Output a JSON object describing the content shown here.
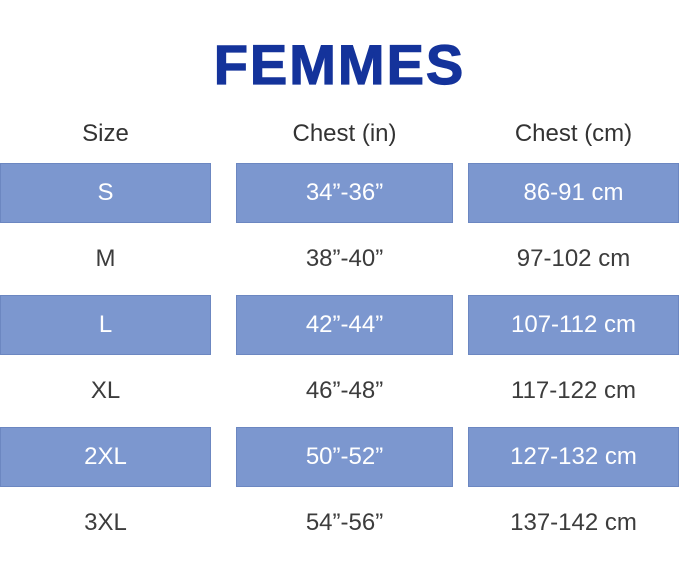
{
  "title": "FEMMES",
  "table": {
    "columns": [
      "Size",
      "Chest (in)",
      "Chest (cm)"
    ],
    "rows": [
      {
        "size": "S",
        "chest_in": "34”-36”",
        "chest_cm": "86-91 cm",
        "highlighted": true
      },
      {
        "size": "M",
        "chest_in": "38”-40”",
        "chest_cm": "97-102 cm",
        "highlighted": false
      },
      {
        "size": "L",
        "chest_in": "42”-44”",
        "chest_cm": "107-112 cm",
        "highlighted": true
      },
      {
        "size": "XL",
        "chest_in": "46”-48”",
        "chest_cm": "117-122 cm",
        "highlighted": false
      },
      {
        "size": "2XL",
        "chest_in": "50”-52”",
        "chest_cm": "127-132 cm",
        "highlighted": true
      },
      {
        "size": "3XL",
        "chest_in": "54”-56”",
        "chest_cm": "137-142 cm",
        "highlighted": false
      }
    ]
  },
  "chart_data": {
    "type": "table",
    "title": "FEMMES",
    "columns": [
      "Size",
      "Chest (in)",
      "Chest (cm)"
    ],
    "rows": [
      [
        "S",
        "34”-36”",
        "86-91 cm"
      ],
      [
        "M",
        "38”-40”",
        "97-102 cm"
      ],
      [
        "L",
        "42”-44”",
        "107-112 cm"
      ],
      [
        "XL",
        "46”-48”",
        "117-122 cm"
      ],
      [
        "2XL",
        "50”-52”",
        "127-132 cm"
      ],
      [
        "3XL",
        "54”-56”",
        "137-142 cm"
      ]
    ],
    "highlighted_row_indices": [
      0,
      2,
      4
    ],
    "layout": "three columns, alternating highlighted bands starting with first data row"
  },
  "colors": {
    "title_text": "#14339B",
    "row_highlight_fill": "#7C97CF",
    "row_highlight_border": "#6C87C1",
    "highlight_text": "#FFFFFF",
    "body_text": "#3C3C3C",
    "background": "#FFFFFF"
  }
}
